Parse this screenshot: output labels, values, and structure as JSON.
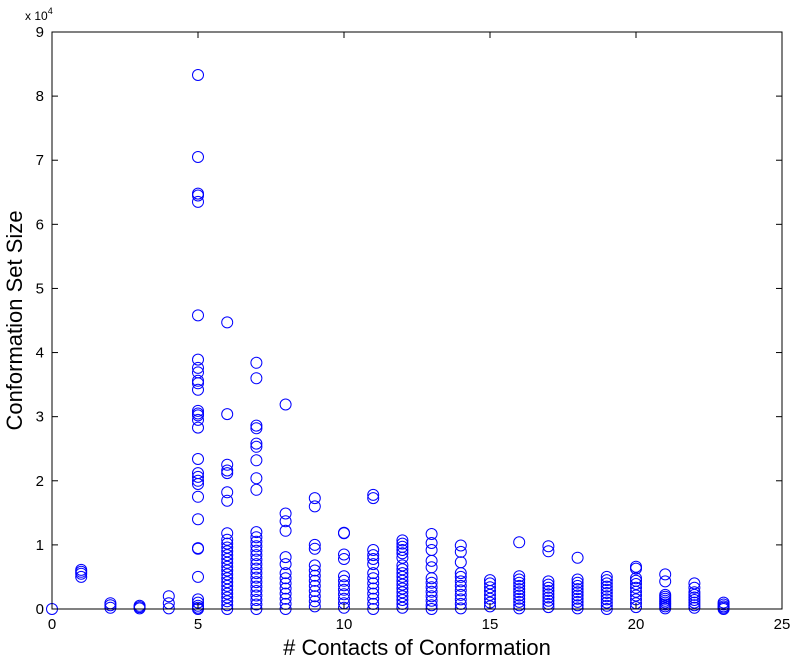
{
  "chart_data": {
    "type": "scatter",
    "title": "",
    "xlabel": "# Contacts of Conformation",
    "ylabel": "Conformation Set Size",
    "y_multiplier_label": "x 10",
    "y_multiplier_exponent": "4",
    "y_multiplier": 10000,
    "xlim": [
      0,
      25
    ],
    "ylim": [
      0,
      90000
    ],
    "x_ticks": [
      0,
      5,
      10,
      15,
      20,
      25
    ],
    "y_ticks": [
      0,
      10000,
      20000,
      30000,
      40000,
      50000,
      60000,
      70000,
      80000,
      90000
    ],
    "x_tick_labels": [
      "0",
      "5",
      "10",
      "15",
      "20",
      "25"
    ],
    "y_tick_labels": [
      "0",
      "1",
      "2",
      "3",
      "4",
      "5",
      "6",
      "7",
      "8",
      "9"
    ],
    "grid": false,
    "marker": "open-circle",
    "color": "#0000ff",
    "series": [
      {
        "points": [
          [
            0,
            0
          ],
          [
            1,
            5000
          ],
          [
            1,
            5500
          ],
          [
            1,
            5800
          ],
          [
            1,
            6100
          ],
          [
            2,
            200
          ],
          [
            2,
            600
          ],
          [
            2,
            900
          ],
          [
            3,
            100
          ],
          [
            3,
            300
          ],
          [
            3,
            500
          ],
          [
            4,
            100
          ],
          [
            4,
            900
          ],
          [
            4,
            2000
          ],
          [
            5,
            83300
          ],
          [
            5,
            70500
          ],
          [
            5,
            64800
          ],
          [
            5,
            64500
          ],
          [
            5,
            63500
          ],
          [
            5,
            45800
          ],
          [
            5,
            38900
          ],
          [
            5,
            37600
          ],
          [
            5,
            36900
          ],
          [
            5,
            35600
          ],
          [
            5,
            35200
          ],
          [
            5,
            34200
          ],
          [
            5,
            30900
          ],
          [
            5,
            30500
          ],
          [
            5,
            30200
          ],
          [
            5,
            29500
          ],
          [
            5,
            28300
          ],
          [
            5,
            23400
          ],
          [
            5,
            21200
          ],
          [
            5,
            20600
          ],
          [
            5,
            20000
          ],
          [
            5,
            19500
          ],
          [
            5,
            17500
          ],
          [
            5,
            14000
          ],
          [
            5,
            9500
          ],
          [
            5,
            9400
          ],
          [
            5,
            5000
          ],
          [
            5,
            1500
          ],
          [
            5,
            1000
          ],
          [
            5,
            500
          ],
          [
            5,
            200
          ],
          [
            5,
            0
          ],
          [
            6,
            44700
          ],
          [
            6,
            30400
          ],
          [
            6,
            22500
          ],
          [
            6,
            21600
          ],
          [
            6,
            21200
          ],
          [
            6,
            18200
          ],
          [
            6,
            16900
          ],
          [
            6,
            11800
          ],
          [
            6,
            10800
          ],
          [
            6,
            10200
          ],
          [
            6,
            9600
          ],
          [
            6,
            9000
          ],
          [
            6,
            8400
          ],
          [
            6,
            7800
          ],
          [
            6,
            7200
          ],
          [
            6,
            6600
          ],
          [
            6,
            6000
          ],
          [
            6,
            5400
          ],
          [
            6,
            4800
          ],
          [
            6,
            4200
          ],
          [
            6,
            3600
          ],
          [
            6,
            3000
          ],
          [
            6,
            2400
          ],
          [
            6,
            1800
          ],
          [
            6,
            1200
          ],
          [
            6,
            600
          ],
          [
            6,
            0
          ],
          [
            7,
            38400
          ],
          [
            7,
            36000
          ],
          [
            7,
            28600
          ],
          [
            7,
            28200
          ],
          [
            7,
            25800
          ],
          [
            7,
            25300
          ],
          [
            7,
            23200
          ],
          [
            7,
            20400
          ],
          [
            7,
            18600
          ],
          [
            7,
            12000
          ],
          [
            7,
            11200
          ],
          [
            7,
            10500
          ],
          [
            7,
            9800
          ],
          [
            7,
            9100
          ],
          [
            7,
            8400
          ],
          [
            7,
            7700
          ],
          [
            7,
            7000
          ],
          [
            7,
            6300
          ],
          [
            7,
            5600
          ],
          [
            7,
            4900
          ],
          [
            7,
            4200
          ],
          [
            7,
            3500
          ],
          [
            7,
            2800
          ],
          [
            7,
            2100
          ],
          [
            7,
            1400
          ],
          [
            7,
            700
          ],
          [
            7,
            0
          ],
          [
            8,
            31900
          ],
          [
            8,
            14900
          ],
          [
            8,
            13700
          ],
          [
            8,
            12200
          ],
          [
            8,
            8100
          ],
          [
            8,
            7000
          ],
          [
            8,
            5600
          ],
          [
            8,
            4800
          ],
          [
            8,
            4000
          ],
          [
            8,
            3200
          ],
          [
            8,
            2400
          ],
          [
            8,
            1600
          ],
          [
            8,
            800
          ],
          [
            8,
            0
          ],
          [
            9,
            17300
          ],
          [
            9,
            16000
          ],
          [
            9,
            10000
          ],
          [
            9,
            9400
          ],
          [
            9,
            6800
          ],
          [
            9,
            6000
          ],
          [
            9,
            5200
          ],
          [
            9,
            4400
          ],
          [
            9,
            3600
          ],
          [
            9,
            2800
          ],
          [
            9,
            2000
          ],
          [
            9,
            1200
          ],
          [
            9,
            400
          ],
          [
            10,
            11900
          ],
          [
            10,
            11800
          ],
          [
            10,
            8500
          ],
          [
            10,
            7800
          ],
          [
            10,
            5100
          ],
          [
            10,
            4400
          ],
          [
            10,
            3700
          ],
          [
            10,
            3000
          ],
          [
            10,
            2300
          ],
          [
            10,
            1600
          ],
          [
            10,
            900
          ],
          [
            10,
            200
          ],
          [
            11,
            17800
          ],
          [
            11,
            17300
          ],
          [
            11,
            9200
          ],
          [
            11,
            8400
          ],
          [
            11,
            7800
          ],
          [
            11,
            7000
          ],
          [
            11,
            5600
          ],
          [
            11,
            4800
          ],
          [
            11,
            4000
          ],
          [
            11,
            3200
          ],
          [
            11,
            2400
          ],
          [
            11,
            1600
          ],
          [
            11,
            800
          ],
          [
            11,
            0
          ],
          [
            12,
            10700
          ],
          [
            12,
            10200
          ],
          [
            12,
            9700
          ],
          [
            12,
            9200
          ],
          [
            12,
            8700
          ],
          [
            12,
            8000
          ],
          [
            12,
            6800
          ],
          [
            12,
            6200
          ],
          [
            12,
            5600
          ],
          [
            12,
            5000
          ],
          [
            12,
            4400
          ],
          [
            12,
            3800
          ],
          [
            12,
            3200
          ],
          [
            12,
            2600
          ],
          [
            12,
            2000
          ],
          [
            12,
            1400
          ],
          [
            12,
            800
          ],
          [
            12,
            200
          ],
          [
            13,
            11700
          ],
          [
            13,
            10300
          ],
          [
            13,
            9200
          ],
          [
            13,
            7500
          ],
          [
            13,
            6500
          ],
          [
            13,
            4800
          ],
          [
            13,
            4100
          ],
          [
            13,
            3400
          ],
          [
            13,
            2700
          ],
          [
            13,
            2000
          ],
          [
            13,
            1300
          ],
          [
            13,
            600
          ],
          [
            13,
            0
          ],
          [
            14,
            9900
          ],
          [
            14,
            8900
          ],
          [
            14,
            7300
          ],
          [
            14,
            5600
          ],
          [
            14,
            5000
          ],
          [
            14,
            4300
          ],
          [
            14,
            3600
          ],
          [
            14,
            2900
          ],
          [
            14,
            2200
          ],
          [
            14,
            1500
          ],
          [
            14,
            800
          ],
          [
            14,
            100
          ],
          [
            15,
            4500
          ],
          [
            15,
            4000
          ],
          [
            15,
            3400
          ],
          [
            15,
            2800
          ],
          [
            15,
            2200
          ],
          [
            15,
            1600
          ],
          [
            15,
            1000
          ],
          [
            15,
            400
          ],
          [
            16,
            10400
          ],
          [
            16,
            5100
          ],
          [
            16,
            4600
          ],
          [
            16,
            4100
          ],
          [
            16,
            3600
          ],
          [
            16,
            3100
          ],
          [
            16,
            2600
          ],
          [
            16,
            2100
          ],
          [
            16,
            1600
          ],
          [
            16,
            1100
          ],
          [
            16,
            600
          ],
          [
            16,
            100
          ],
          [
            17,
            9800
          ],
          [
            17,
            9000
          ],
          [
            17,
            4300
          ],
          [
            17,
            3800
          ],
          [
            17,
            3300
          ],
          [
            17,
            2800
          ],
          [
            17,
            2300
          ],
          [
            17,
            1800
          ],
          [
            17,
            1300
          ],
          [
            17,
            800
          ],
          [
            17,
            300
          ],
          [
            18,
            8000
          ],
          [
            18,
            4600
          ],
          [
            18,
            4100
          ],
          [
            18,
            3600
          ],
          [
            18,
            3100
          ],
          [
            18,
            2600
          ],
          [
            18,
            2100
          ],
          [
            18,
            1600
          ],
          [
            18,
            1100
          ],
          [
            18,
            600
          ],
          [
            18,
            100
          ],
          [
            19,
            5000
          ],
          [
            19,
            4500
          ],
          [
            19,
            4000
          ],
          [
            19,
            3500
          ],
          [
            19,
            3000
          ],
          [
            19,
            2500
          ],
          [
            19,
            2000
          ],
          [
            19,
            1500
          ],
          [
            19,
            1000
          ],
          [
            19,
            500
          ],
          [
            19,
            0
          ],
          [
            20,
            6600
          ],
          [
            20,
            6300
          ],
          [
            20,
            4800
          ],
          [
            20,
            4400
          ],
          [
            20,
            3900
          ],
          [
            20,
            3300
          ],
          [
            20,
            2700
          ],
          [
            20,
            2100
          ],
          [
            20,
            1500
          ],
          [
            20,
            900
          ],
          [
            20,
            300
          ],
          [
            21,
            5400
          ],
          [
            21,
            4300
          ],
          [
            21,
            2200
          ],
          [
            21,
            1900
          ],
          [
            21,
            1600
          ],
          [
            21,
            1300
          ],
          [
            21,
            1000
          ],
          [
            21,
            700
          ],
          [
            21,
            400
          ],
          [
            21,
            100
          ],
          [
            22,
            4000
          ],
          [
            22,
            3300
          ],
          [
            22,
            2600
          ],
          [
            22,
            2200
          ],
          [
            22,
            1800
          ],
          [
            22,
            1400
          ],
          [
            22,
            1000
          ],
          [
            22,
            600
          ],
          [
            22,
            200
          ],
          [
            23,
            1000
          ],
          [
            23,
            700
          ],
          [
            23,
            400
          ],
          [
            23,
            200
          ],
          [
            23,
            0
          ]
        ]
      }
    ]
  }
}
